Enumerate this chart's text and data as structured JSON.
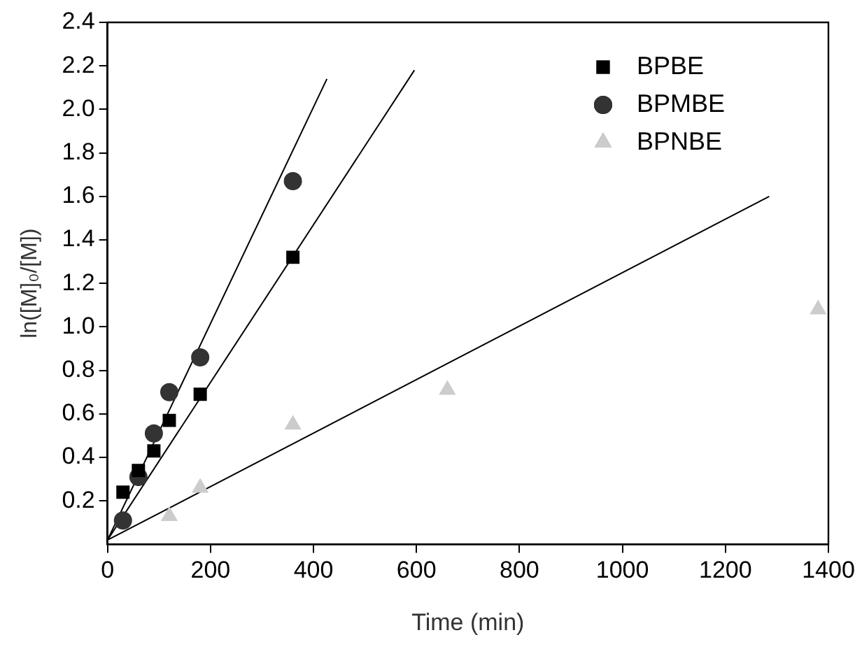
{
  "chart_data": {
    "type": "scatter",
    "xlabel": "Time (min)",
    "ylabel": "ln([M]₀/[M])",
    "xlim": [
      0,
      1400
    ],
    "xticks": [
      0,
      200,
      400,
      600,
      800,
      1000,
      1200,
      1400
    ],
    "ylim": [
      0,
      2.4
    ],
    "yticks": [
      0.2,
      0.4,
      0.6,
      0.8,
      {
        "value": 1,
        "label": "1.0"
      },
      1.2,
      1.4,
      1.6,
      1.8,
      {
        "value": 2,
        "label": "2.0"
      },
      2.2,
      2.4
    ],
    "grid": false,
    "legend": "top right",
    "series": [
      {
        "name": "BPBE",
        "color": "#000000",
        "marker": "square",
        "x": [
          30,
          60,
          90,
          120,
          180,
          360
        ],
        "values": [
          0.24,
          0.34,
          0.43,
          0.57,
          0.69,
          1.32
        ]
      },
      {
        "name": "BPMBE",
        "color": "#333333",
        "marker": "circle",
        "x": [
          30,
          60,
          90,
          120,
          180,
          360
        ],
        "values": [
          0.11,
          0.31,
          0.51,
          0.7,
          0.86,
          1.67
        ]
      },
      {
        "name": "BPNBE",
        "color": "#cccccc",
        "marker": "triangle",
        "x": [
          120,
          180,
          360,
          660,
          1380
        ],
        "values": [
          0.13,
          0.26,
          0.55,
          0.71,
          1.08
        ]
      },
      {
        "type": "line",
        "color": "#000000",
        "marker": "none",
        "x": [
          0,
          596
        ],
        "values": [
          0.02,
          2.18
        ]
      },
      {
        "type": "line",
        "color": "#000000",
        "marker": "none",
        "x": [
          0,
          426
        ],
        "values": [
          0.02,
          2.14
        ]
      },
      {
        "type": "line",
        "color": "#000000",
        "marker": "none",
        "x": [
          0,
          1285
        ],
        "values": [
          0.02,
          1.6
        ]
      }
    ]
  }
}
